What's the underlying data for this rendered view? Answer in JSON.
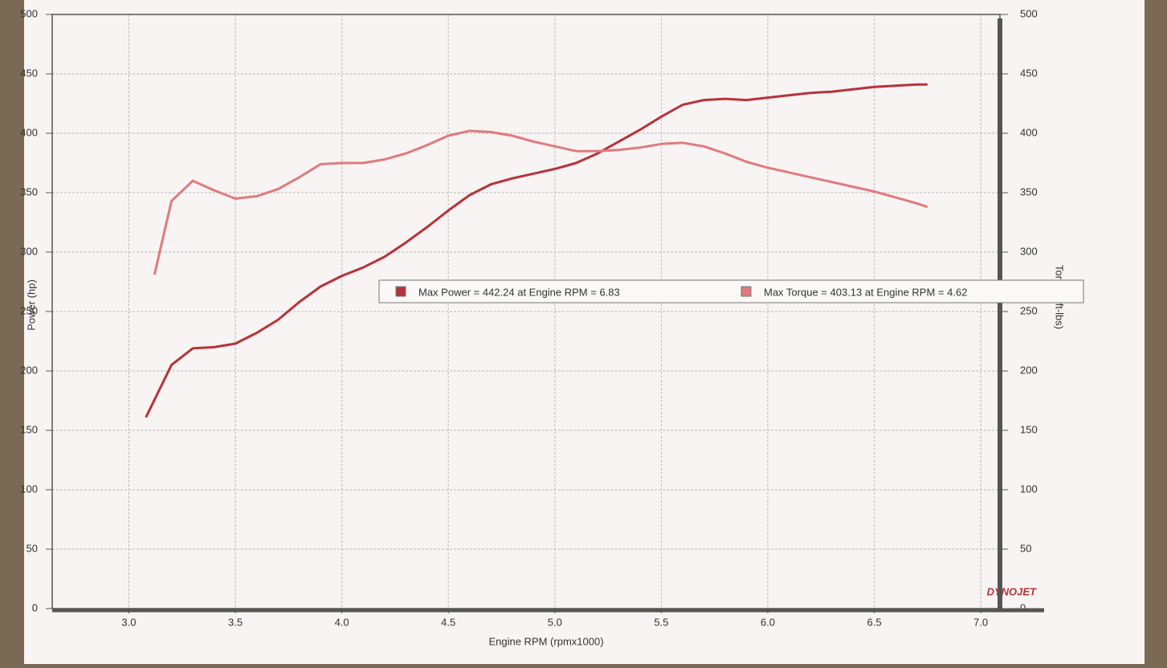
{
  "chart_data": {
    "type": "line",
    "xlabel": "Engine RPM (rpmx1000)",
    "ylabel": "Power (hp)",
    "y2label": "Torque (ft-lbs)",
    "logo": "DYNOJET",
    "xlim": [
      2.64,
      7.09
    ],
    "xticks": [
      {
        "value": 3,
        "label": "3.0"
      },
      {
        "value": 3.5,
        "label": "3.5"
      },
      {
        "value": 4,
        "label": "4.0"
      },
      {
        "value": 4.5,
        "label": "4.5"
      },
      {
        "value": 5,
        "label": "5.0"
      },
      {
        "value": 5.5,
        "label": "5.5"
      },
      {
        "value": 6,
        "label": "6.0"
      },
      {
        "value": 6.5,
        "label": "6.5"
      },
      {
        "value": 7,
        "label": "7.0"
      }
    ],
    "ylim": [
      0,
      500
    ],
    "yticks": [
      0,
      50,
      100,
      150,
      200,
      250,
      300,
      350,
      400,
      450,
      500
    ],
    "y2lim": [
      0,
      500
    ],
    "y2ticks": [
      0,
      50,
      100,
      150,
      200,
      250,
      300,
      350,
      400,
      450,
      500
    ],
    "grid": true,
    "series": [
      {
        "name": "Max Power = 442.24 at Engine RPM = 6.83",
        "color": "#b8323a",
        "x": [
          3.08,
          3.2,
          3.3,
          3.4,
          3.5,
          3.6,
          3.7,
          3.8,
          3.9,
          4.0,
          4.1,
          4.2,
          4.3,
          4.4,
          4.5,
          4.6,
          4.7,
          4.8,
          4.9,
          5.0,
          5.1,
          5.2,
          5.3,
          5.4,
          5.5,
          5.6,
          5.7,
          5.8,
          5.9,
          6.0,
          6.1,
          6.2,
          6.3,
          6.4,
          6.5,
          6.6,
          6.7,
          6.75
        ],
        "values": [
          161,
          205,
          219,
          220,
          223,
          232,
          243,
          258,
          271,
          280,
          287,
          296,
          308,
          321,
          335,
          348,
          357,
          362,
          366,
          370,
          375,
          383,
          393,
          403,
          414,
          424,
          428,
          429,
          428,
          430,
          432,
          434,
          435,
          437,
          439,
          440,
          441,
          441
        ]
      },
      {
        "name": "Max Torque = 403.13 at Engine RPM = 4.62",
        "color": "#e07a7e",
        "axis": "y2",
        "x": [
          3.12,
          3.2,
          3.3,
          3.4,
          3.5,
          3.6,
          3.7,
          3.8,
          3.9,
          4.0,
          4.1,
          4.2,
          4.3,
          4.4,
          4.5,
          4.6,
          4.7,
          4.8,
          4.9,
          5.0,
          5.1,
          5.2,
          5.3,
          5.4,
          5.5,
          5.6,
          5.7,
          5.8,
          5.9,
          6.0,
          6.1,
          6.2,
          6.3,
          6.4,
          6.5,
          6.6,
          6.7,
          6.75
        ],
        "values": [
          281,
          343,
          360,
          352,
          345,
          347,
          353,
          363,
          374,
          375,
          375,
          378,
          383,
          390,
          398,
          402,
          401,
          398,
          393,
          389,
          385,
          385,
          386,
          388,
          391,
          392,
          389,
          383,
          376,
          371,
          367,
          363,
          359,
          355,
          351,
          346,
          341,
          338
        ]
      }
    ]
  }
}
